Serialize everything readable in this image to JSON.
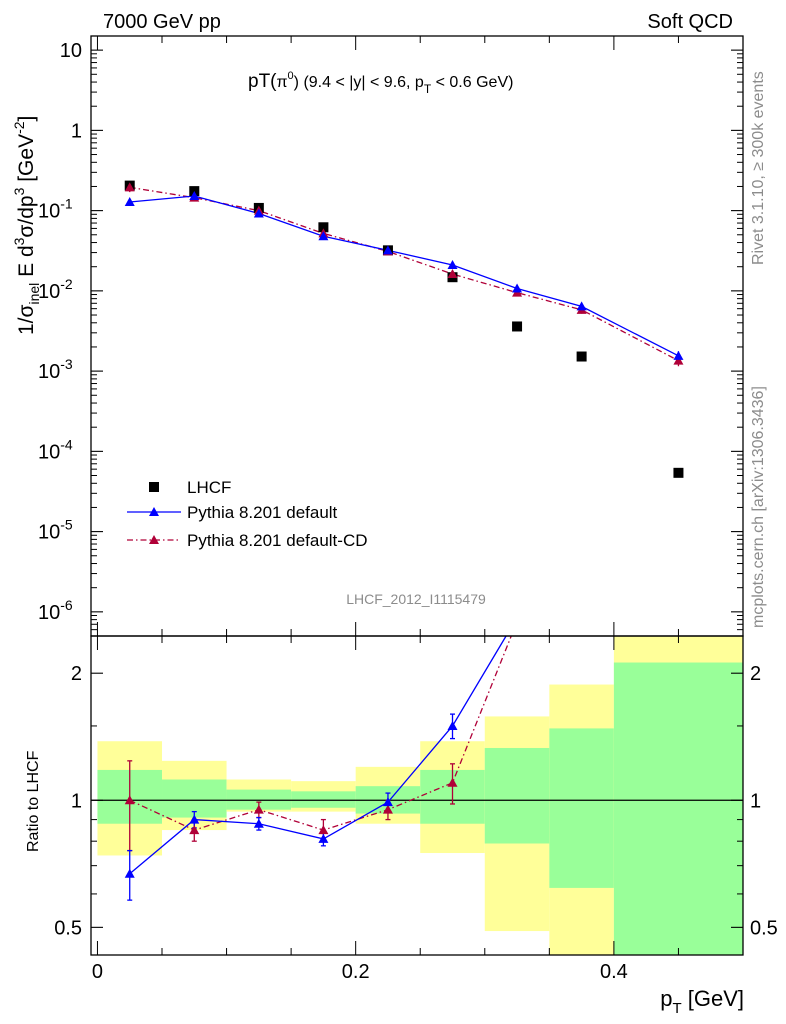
{
  "header": {
    "energy": "7000 GeV pp",
    "category": "Soft QCD"
  },
  "title": {
    "pre": "pT(",
    "pi": "π",
    "pisup": "0",
    "post": ") (9.4 < |y| < 9.6, p",
    "sub": "T",
    "end": " < 0.6 GeV)"
  },
  "side": {
    "top": "Rivet 3.1.10, ≥ 300k events",
    "bottom": "mcplots.cern.ch [arXiv:1306.3436]"
  },
  "analysis_id": "LHCF_2012_I1115479",
  "ylabel_main": {
    "a": "1/σ",
    "b": "inel",
    "c": " E d",
    "d": "3",
    "e": "σ/dp",
    "f": "3",
    "g": " [GeV",
    "h": "-2",
    "i": "]"
  },
  "ylabel_ratio": "Ratio to LHCF",
  "xlabel": {
    "a": "p",
    "b": "T",
    "c": " [GeV]"
  },
  "main_yticks": [
    {
      "value": 10,
      "label": "10"
    },
    {
      "value": 1,
      "label": "1"
    },
    {
      "value": 0.1,
      "label": "10",
      "sup": "-1"
    },
    {
      "value": 0.01,
      "label": "10",
      "sup": "-2"
    },
    {
      "value": 0.001,
      "label": "10",
      "sup": "-3"
    },
    {
      "value": 0.0001,
      "label": "10",
      "sup": "-4"
    },
    {
      "value": 1e-05,
      "label": "10",
      "sup": "-5"
    },
    {
      "value": 1e-06,
      "label": "10",
      "sup": "-6"
    }
  ],
  "ratio_yticks": [
    {
      "value": 2,
      "label": "2"
    },
    {
      "value": 1,
      "label": "1"
    },
    {
      "value": 0.5,
      "label": "0.5"
    }
  ],
  "xticks": [
    {
      "value": 0,
      "label": "0"
    },
    {
      "value": 0.2,
      "label": "0.2"
    },
    {
      "value": 0.4,
      "label": "0.4"
    }
  ],
  "chart_data": {
    "type": "scatter",
    "x_axis": {
      "label": "pT [GeV]",
      "range": [
        -0.005,
        0.5
      ]
    },
    "main_panel": {
      "y_axis": {
        "label": "1/σinel E d3σ/dp3 [GeV-2]",
        "scale": "log",
        "range": [
          5e-07,
          15
        ]
      },
      "series": [
        {
          "name": "LHCF",
          "marker": "square",
          "color": "#000000",
          "x": [
            0.025,
            0.075,
            0.125,
            0.175,
            0.225,
            0.275,
            0.325,
            0.375,
            0.45
          ],
          "y": [
            0.205,
            0.175,
            0.108,
            0.062,
            0.032,
            0.0148,
            0.0036,
            0.00152,
            5.4e-05
          ]
        },
        {
          "name": "Pythia 8.201 default",
          "marker": "triangle",
          "line": "solid",
          "color": "#0000ff",
          "x": [
            0.025,
            0.075,
            0.125,
            0.175,
            0.225,
            0.275,
            0.325,
            0.375,
            0.45
          ],
          "y": [
            0.128,
            0.152,
            0.092,
            0.048,
            0.032,
            0.021,
            0.0107,
            0.0064,
            0.00155
          ],
          "yerr": [
            0.012,
            0.007,
            0.004,
            0.002,
            0.0015,
            0.0012,
            0.0008,
            0.0006,
            0.00022
          ]
        },
        {
          "name": "Pythia 8.201 default-CD",
          "marker": "triangle",
          "line": "dash-dot",
          "color": "#b00038",
          "x": [
            0.025,
            0.075,
            0.125,
            0.175,
            0.225,
            0.275,
            0.325,
            0.375,
            0.45
          ],
          "y": [
            0.195,
            0.145,
            0.1,
            0.052,
            0.031,
            0.0162,
            0.0095,
            0.0058,
            0.00135
          ],
          "yerr": [
            0.025,
            0.008,
            0.005,
            0.003,
            0.0015,
            0.0012,
            0.0008,
            0.0006,
            0.0002
          ]
        }
      ]
    },
    "ratio_panel": {
      "y_axis": {
        "label": "Ratio to LHCF",
        "scale": "log",
        "range": [
          0.43,
          2.45
        ],
        "reference_line": 1
      },
      "bands": [
        {
          "x": [
            0,
            0.05
          ],
          "green": [
            0.88,
            1.18
          ],
          "yellow": [
            0.74,
            1.38
          ]
        },
        {
          "x": [
            0.05,
            0.1
          ],
          "green": [
            0.91,
            1.12
          ],
          "yellow": [
            0.85,
            1.24
          ]
        },
        {
          "x": [
            0.1,
            0.15
          ],
          "green": [
            0.95,
            1.06
          ],
          "yellow": [
            0.94,
            1.12
          ]
        },
        {
          "x": [
            0.15,
            0.2
          ],
          "green": [
            0.96,
            1.05
          ],
          "yellow": [
            0.94,
            1.11
          ]
        },
        {
          "x": [
            0.2,
            0.25
          ],
          "green": [
            0.93,
            1.08
          ],
          "yellow": [
            0.88,
            1.2
          ]
        },
        {
          "x": [
            0.25,
            0.3
          ],
          "green": [
            0.88,
            1.18
          ],
          "yellow": [
            0.75,
            1.38
          ]
        },
        {
          "x": [
            0.3,
            0.35
          ],
          "green": [
            0.79,
            1.33
          ],
          "yellow": [
            0.49,
            1.58
          ]
        },
        {
          "x": [
            0.35,
            0.4
          ],
          "green": [
            0.62,
            1.48
          ],
          "yellow": [
            0.43,
            1.88
          ]
        },
        {
          "x": [
            0.4,
            0.5
          ],
          "green": [
            0.43,
            2.12
          ],
          "yellow": [
            0.43,
            2.45
          ]
        }
      ],
      "series": [
        {
          "name": "Pythia 8.201 default",
          "x": [
            0.025,
            0.075,
            0.125,
            0.175,
            0.225,
            0.275
          ],
          "y": [
            0.67,
            0.9,
            0.88,
            0.81,
            0.99,
            1.5
          ],
          "yerr": [
            0.09,
            0.04,
            0.03,
            0.03,
            0.05,
            0.1
          ],
          "line_x": [
            0.025,
            0.075,
            0.125,
            0.175,
            0.225,
            0.275,
            0.3165
          ],
          "line_y": [
            0.67,
            0.9,
            0.88,
            0.81,
            0.99,
            1.5,
            2.45
          ]
        },
        {
          "name": "Pythia 8.201 default-CD",
          "x": [
            0.025,
            0.075,
            0.125,
            0.175,
            0.225,
            0.275
          ],
          "y": [
            1.0,
            0.85,
            0.95,
            0.85,
            0.95,
            1.1
          ],
          "yerr": [
            0.24,
            0.05,
            0.04,
            0.05,
            0.05,
            0.12
          ],
          "line_x": [
            0.025,
            0.075,
            0.125,
            0.175,
            0.225,
            0.275,
            0.3205
          ],
          "line_y": [
            1.0,
            0.85,
            0.95,
            0.85,
            0.95,
            1.1,
            2.45
          ]
        }
      ]
    }
  }
}
